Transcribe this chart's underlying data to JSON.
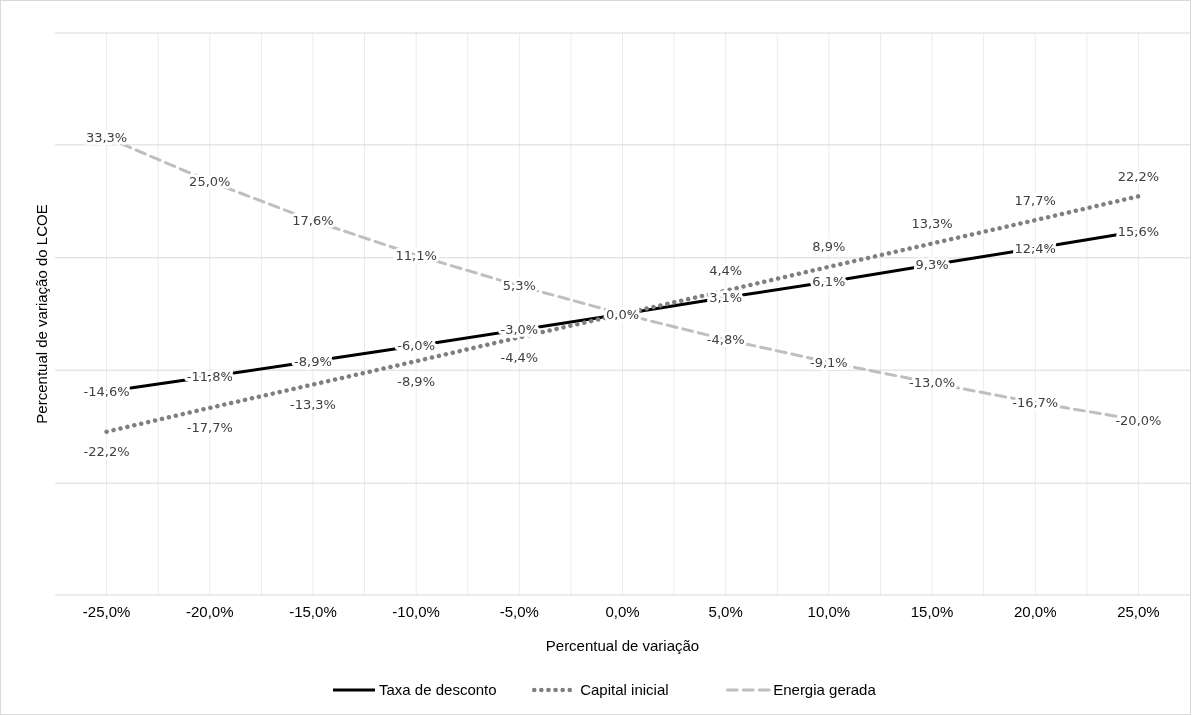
{
  "chart_data": {
    "type": "line",
    "xlabel": "Percentual de variação",
    "ylabel": "Percentual de variação do LCOE",
    "x": [
      -25,
      -20,
      -15,
      -10,
      -5,
      0,
      5,
      10,
      15,
      20,
      25
    ],
    "xlim": [
      -27.5,
      27.5
    ],
    "xticks": [
      {
        "value": -25,
        "label": "-25,0%"
      },
      {
        "value": -22.5,
        "label": null
      },
      {
        "value": -20,
        "label": "-20,0%"
      },
      {
        "value": -17.5,
        "label": null
      },
      {
        "value": -15,
        "label": "-15,0%"
      },
      {
        "value": -12.5,
        "label": null
      },
      {
        "value": -10,
        "label": "-10,0%"
      },
      {
        "value": -7.5,
        "label": null
      },
      {
        "value": -5,
        "label": "-5,0%"
      },
      {
        "value": -2.5,
        "label": null
      },
      {
        "value": 0,
        "label": "0,0%"
      },
      {
        "value": 2.5,
        "label": null
      },
      {
        "value": 5,
        "label": "5,0%"
      },
      {
        "value": 7.5,
        "label": null
      },
      {
        "value": 10,
        "label": "10,0%"
      },
      {
        "value": 12.5,
        "label": null
      },
      {
        "value": 15,
        "label": "15,0%"
      },
      {
        "value": 17.5,
        "label": null
      },
      {
        "value": 20,
        "label": "20,0%"
      },
      {
        "value": 22.5,
        "label": null
      },
      {
        "value": 25,
        "label": "25,0%"
      }
    ],
    "ylim": [
      -53,
      53
    ],
    "yticks": [
      {
        "value": -31.9,
        "label": null
      },
      {
        "value": -10.6,
        "label": null
      },
      {
        "value": 10.6,
        "label": null
      },
      {
        "value": 31.9,
        "label": null
      }
    ],
    "tick_labels": "x",
    "grid": true,
    "legend": "bottom",
    "marker": "none",
    "series": [
      {
        "name": "Taxa de desconto",
        "color": "#000000",
        "line_style": "solid",
        "values": [
          -14.6,
          -11.8,
          -8.9,
          -6.0,
          -3.0,
          0.0,
          3.1,
          6.1,
          9.3,
          12.4,
          15.6
        ],
        "value_labels": [
          "-14,6%",
          "-11,8%",
          "-8,9%",
          "-6,0%",
          "-3,0%",
          "0,0%",
          "3,1%",
          "6,1%",
          "9,3%",
          "12,4%",
          "15,6%"
        ]
      },
      {
        "name": "Capital inicial",
        "color": "#7f7f7f",
        "line_style": "dotted",
        "values": [
          -22.2,
          -17.7,
          -13.3,
          -8.9,
          -4.4,
          0.0,
          4.4,
          8.9,
          13.3,
          17.7,
          22.2
        ],
        "value_labels": [
          "-22,2%",
          "-17,7%",
          "-13,3%",
          "-8,9%",
          "-4,4%",
          null,
          "4,4%",
          "8,9%",
          "13,3%",
          "17,7%",
          "22,2%"
        ]
      },
      {
        "name": "Energia gerada",
        "color": "#bfbfbf",
        "line_style": "dashed",
        "values": [
          33.3,
          25.0,
          17.6,
          11.1,
          5.3,
          0.0,
          -4.8,
          -9.1,
          -13.0,
          -16.7,
          -20.0
        ],
        "value_labels": [
          "33,3%",
          "25,0%",
          "17,6%",
          "11,1%",
          "5,3%",
          null,
          "-4,8%",
          "-9,1%",
          "-13,0%",
          "-16,7%",
          "-20,0%"
        ]
      }
    ]
  }
}
